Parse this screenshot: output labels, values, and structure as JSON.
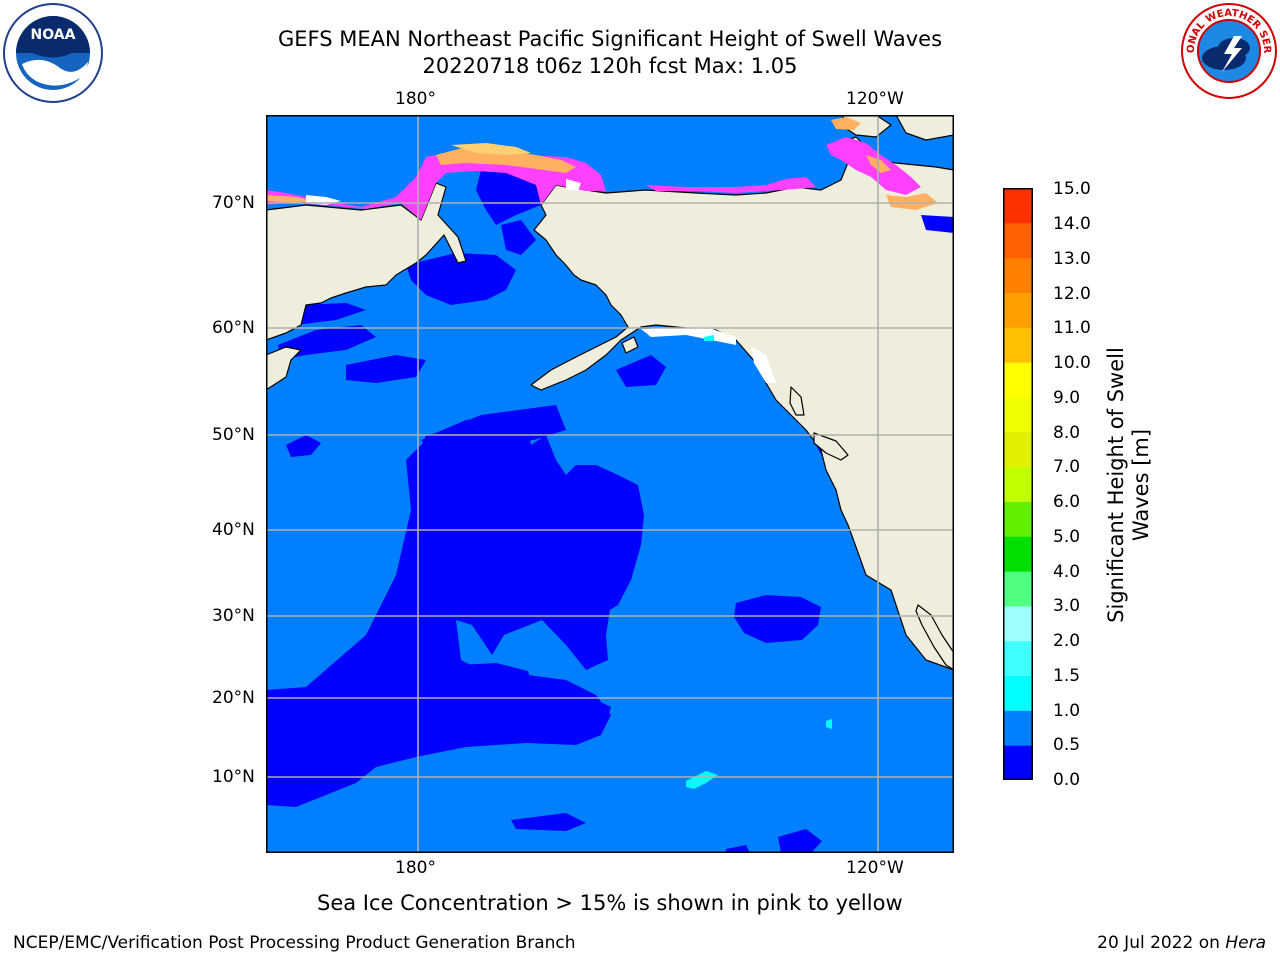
{
  "title_line1": "GEFS MEAN Northeast Pacific Significant Height of Swell Waves",
  "title_line2": "20220718 t06z 120h fcst   Max: 1.05",
  "map": {
    "top_lon_labels": [
      "180°",
      "120°W"
    ],
    "bottom_lon_labels": [
      "180°",
      "120°W"
    ],
    "lat_labels": [
      "70°N",
      "60°N",
      "50°N",
      "40°N",
      "30°N",
      "20°N",
      "10°N"
    ],
    "colors": {
      "ocean_0_05": "#0000ff",
      "ocean_05_10": "#0080ff",
      "land": "#efeedd",
      "grid": "#b0b0b0",
      "ice_pink": "#ff40ff",
      "ice_orange": "#ffb060"
    }
  },
  "colorbar": {
    "labels": [
      "15.0",
      "14.0",
      "13.0",
      "12.0",
      "11.0",
      "10.0",
      "9.0",
      "8.0",
      "7.0",
      "6.0",
      "5.0",
      "4.0",
      "3.0",
      "2.0",
      "1.5",
      "1.0",
      "0.5",
      "0.0"
    ],
    "colors_bottom_to_top": [
      "#0000ff",
      "#0080ff",
      "#00ffff",
      "#40ffff",
      "#a0ffff",
      "#50ff80",
      "#00e000",
      "#60f000",
      "#c0ff00",
      "#e0f000",
      "#f0ff00",
      "#ffff00",
      "#ffc000",
      "#ffa000",
      "#ff8000",
      "#ff6000",
      "#ff3000"
    ],
    "title_line1": "Significant Height of Swell",
    "title_line2": "Waves [m]"
  },
  "note": "Sea Ice Concentration > 15% is shown in pink to yellow",
  "footer_left": "NCEP/EMC/Verification Post Processing Product Generation Branch",
  "footer_right_date": "20 Jul 2022 on",
  "footer_right_machine": "Hera",
  "logos": {
    "noaa_text": "NOAA",
    "nws_text": "NATIONAL WEATHER SERVICE"
  }
}
